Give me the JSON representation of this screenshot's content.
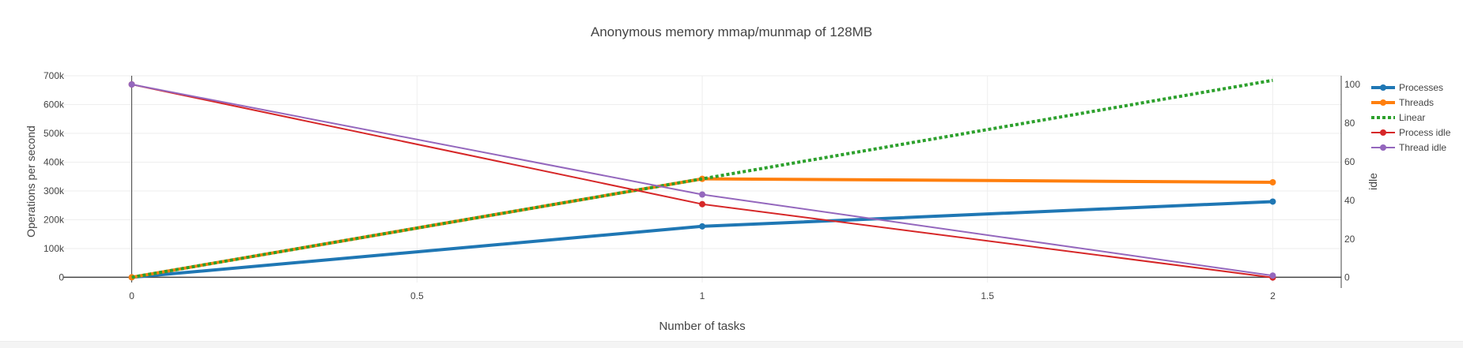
{
  "chart_data": {
    "type": "line",
    "title": "Anonymous memory mmap/munmap of 128MB",
    "xlabel": "Number of tasks",
    "ylabel": "Operations per second",
    "y2label": "idle",
    "x": [
      0,
      1,
      2
    ],
    "xlim": [
      -0.12,
      2.12
    ],
    "ylim": [
      -18000,
      700000
    ],
    "y2lim": [
      -2.57,
      104.5
    ],
    "xticks": [
      0,
      0.5,
      1,
      1.5,
      2
    ],
    "xtick_labels": [
      "0",
      "0.5",
      "1",
      "1.5",
      "2"
    ],
    "yticks": [
      0,
      100000,
      200000,
      300000,
      400000,
      500000,
      600000,
      700000
    ],
    "ytick_labels": [
      "0",
      "100k",
      "200k",
      "300k",
      "400k",
      "500k",
      "600k",
      "700k"
    ],
    "y2ticks": [
      0,
      20,
      40,
      60,
      80,
      100
    ],
    "y2tick_labels": [
      "0",
      "20",
      "40",
      "60",
      "80",
      "100"
    ],
    "grid": true,
    "legend_position": "top-right",
    "series": [
      {
        "name": "Processes",
        "axis": "y",
        "values": [
          0,
          177000,
          263000
        ],
        "color": "#1f77b4",
        "dash": "solid",
        "width": 4,
        "markers": true
      },
      {
        "name": "Threads",
        "axis": "y",
        "values": [
          0,
          342000,
          330000
        ],
        "color": "#ff7f0e",
        "dash": "solid",
        "width": 4,
        "markers": true
      },
      {
        "name": "Linear",
        "axis": "y",
        "values": [
          0,
          342000,
          684000
        ],
        "color": "#2ca02c",
        "dash": "dot",
        "width": 4,
        "markers": false
      },
      {
        "name": "Process idle",
        "axis": "y2",
        "values": [
          100,
          38,
          0
        ],
        "color": "#d62728",
        "dash": "solid",
        "width": 2,
        "markers": true
      },
      {
        "name": "Thread idle",
        "axis": "y2",
        "values": [
          100,
          43,
          1
        ],
        "color": "#9467bd",
        "dash": "solid",
        "width": 2,
        "markers": true
      }
    ]
  }
}
